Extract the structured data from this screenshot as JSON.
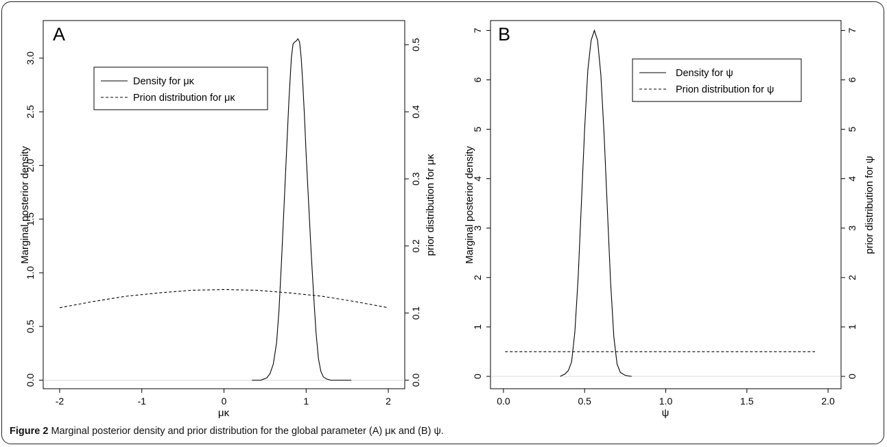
{
  "caption": {
    "label": "Figure 2",
    "text": "Marginal posterior density and prior distribution for the global parameter (A) μκ and (B) ψ."
  },
  "chart_data": [
    {
      "type": "line",
      "panel": "A",
      "xlabel": "μκ",
      "ylabel": "Marginal posterior density",
      "ylabel_right": "prior distribution for μκ",
      "xlim": [
        -2.2,
        2.2
      ],
      "ylim": [
        -0.08,
        3.35
      ],
      "ylim_right": [
        -0.0128,
        0.536
      ],
      "xticks": [
        "-2",
        "-1",
        "0",
        "1",
        "2"
      ],
      "yticks": [
        "0.0",
        "0.5",
        "1.0",
        "1.5",
        "2.0",
        "2.5",
        "3.0"
      ],
      "yticks_right": [
        "0.0",
        "0.1",
        "0.2",
        "0.3",
        "0.4",
        "0.5"
      ],
      "legend": [
        "Density for μκ",
        "Prion distribution for μκ"
      ],
      "legend_position": "top-left",
      "series": [
        {
          "name": "Density for μκ",
          "axis": "left",
          "style": "solid",
          "x": [
            0.34,
            0.45,
            0.52,
            0.56,
            0.6,
            0.64,
            0.67,
            0.7,
            0.73,
            0.76,
            0.79,
            0.82,
            0.84,
            0.86,
            0.88,
            0.9,
            0.92,
            0.94,
            0.96,
            0.98,
            1.0,
            1.03,
            1.06,
            1.09,
            1.12,
            1.15,
            1.18,
            1.21,
            1.25,
            1.3,
            1.4,
            1.55
          ],
          "y": [
            0.0,
            0.0,
            0.02,
            0.06,
            0.15,
            0.35,
            0.65,
            1.1,
            1.6,
            2.1,
            2.6,
            3.0,
            3.13,
            3.15,
            3.16,
            3.18,
            3.15,
            3.0,
            2.75,
            2.45,
            2.1,
            1.65,
            1.2,
            0.8,
            0.45,
            0.2,
            0.08,
            0.03,
            0.01,
            0.0,
            0.0,
            0.0
          ]
        },
        {
          "name": "Prion distribution for μκ",
          "axis": "right",
          "style": "dashed",
          "x": [
            -2.0,
            -1.6,
            -1.2,
            -0.8,
            -0.4,
            0.0,
            0.4,
            0.8,
            1.2,
            1.6,
            2.0
          ],
          "y": [
            0.108,
            0.117,
            0.125,
            0.13,
            0.134,
            0.135,
            0.134,
            0.13,
            0.125,
            0.117,
            0.108
          ]
        }
      ]
    },
    {
      "type": "line",
      "panel": "B",
      "xlabel": "ψ",
      "ylabel": "Marginal posterior density",
      "ylabel_right": "prior distribution for ψ",
      "xlim": [
        -0.08,
        2.08
      ],
      "ylim": [
        -0.25,
        7.2
      ],
      "ylim_right": [
        -0.25,
        7.2
      ],
      "xticks": [
        "0.0",
        "0.5",
        "1.0",
        "1.5",
        "2.0"
      ],
      "yticks": [
        "0",
        "1",
        "2",
        "3",
        "4",
        "5",
        "6",
        "7"
      ],
      "yticks_right": [
        "0",
        "1",
        "2",
        "3",
        "4",
        "5",
        "6",
        "7"
      ],
      "legend": [
        "Density for ψ",
        "Prion distribution for ψ"
      ],
      "legend_position": "top-right",
      "series": [
        {
          "name": "Density for ψ",
          "axis": "left",
          "style": "solid",
          "x": [
            0.35,
            0.38,
            0.4,
            0.42,
            0.44,
            0.46,
            0.48,
            0.5,
            0.52,
            0.54,
            0.56,
            0.58,
            0.6,
            0.62,
            0.64,
            0.66,
            0.68,
            0.7,
            0.72,
            0.75,
            0.79
          ],
          "y": [
            0.0,
            0.05,
            0.12,
            0.3,
            0.9,
            2.0,
            3.5,
            5.0,
            6.2,
            6.8,
            7.0,
            6.8,
            6.1,
            4.9,
            3.4,
            1.9,
            0.8,
            0.25,
            0.08,
            0.02,
            0.0
          ]
        },
        {
          "name": "Prion distribution for ψ",
          "axis": "right",
          "style": "dashed",
          "x": [
            0.01,
            1.92
          ],
          "y": [
            0.5,
            0.5
          ]
        }
      ]
    }
  ]
}
